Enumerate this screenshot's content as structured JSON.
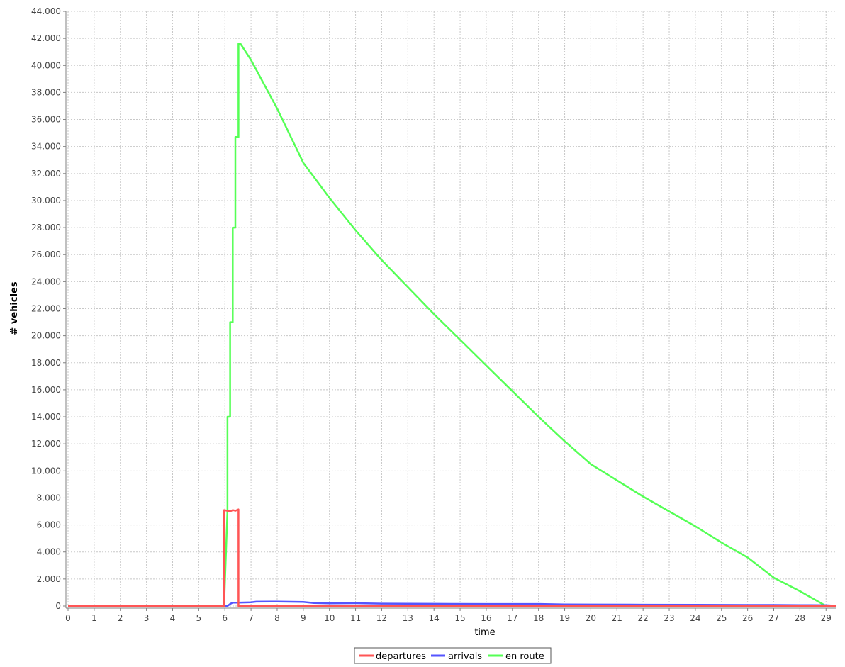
{
  "chart_data": {
    "type": "line",
    "title": "",
    "xlabel": "time",
    "ylabel": "# vehicles",
    "xlim": [
      0,
      29.4
    ],
    "ylim": [
      0,
      44000
    ],
    "x_ticks": [
      0,
      1,
      2,
      3,
      4,
      5,
      6,
      7,
      8,
      9,
      10,
      11,
      12,
      13,
      14,
      15,
      16,
      17,
      18,
      19,
      20,
      21,
      22,
      23,
      24,
      25,
      26,
      27,
      28,
      29
    ],
    "x_tick_labels": [
      "0",
      "1",
      "2",
      "3",
      "4",
      "5",
      "6",
      "7",
      "8",
      "9",
      "10",
      "11",
      "12",
      "13",
      "14",
      "15",
      "16",
      "17",
      "18",
      "19",
      "20",
      "21",
      "22",
      "23",
      "24",
      "25",
      "26",
      "27",
      "28",
      "29"
    ],
    "y_ticks": [
      0,
      2000,
      4000,
      6000,
      8000,
      10000,
      12000,
      14000,
      16000,
      18000,
      20000,
      22000,
      24000,
      26000,
      28000,
      30000,
      32000,
      34000,
      36000,
      38000,
      40000,
      42000,
      44000
    ],
    "y_tick_labels": [
      "0",
      "2.000",
      "4.000",
      "6.000",
      "8.000",
      "10.000",
      "12.000",
      "14.000",
      "16.000",
      "18.000",
      "20.000",
      "22.000",
      "24.000",
      "26.000",
      "28.000",
      "30.000",
      "32.000",
      "34.000",
      "36.000",
      "38.000",
      "40.000",
      "42.000",
      "44.000"
    ],
    "grid": true,
    "legend_position": "bottom",
    "series": [
      {
        "name": "departures",
        "color": "#ff5555",
        "points": [
          [
            0,
            0
          ],
          [
            5.97,
            0
          ],
          [
            5.97,
            7100
          ],
          [
            6.1,
            7050
          ],
          [
            6.2,
            7000
          ],
          [
            6.3,
            7100
          ],
          [
            6.4,
            7050
          ],
          [
            6.52,
            7150
          ],
          [
            6.52,
            0
          ],
          [
            29.4,
            0
          ]
        ]
      },
      {
        "name": "arrivals",
        "color": "#5555ff",
        "points": [
          [
            0,
            0
          ],
          [
            6.1,
            0
          ],
          [
            6.2,
            150
          ],
          [
            6.3,
            250
          ],
          [
            6.5,
            250
          ],
          [
            7,
            280
          ],
          [
            7.2,
            320
          ],
          [
            8,
            330
          ],
          [
            9,
            300
          ],
          [
            9.4,
            220
          ],
          [
            10,
            200
          ],
          [
            11,
            210
          ],
          [
            12,
            180
          ],
          [
            14,
            160
          ],
          [
            16,
            150
          ],
          [
            18,
            150
          ],
          [
            19,
            120
          ],
          [
            20,
            110
          ],
          [
            22,
            100
          ],
          [
            24,
            90
          ],
          [
            26,
            80
          ],
          [
            27,
            80
          ],
          [
            28,
            70
          ],
          [
            29,
            60
          ],
          [
            29.4,
            20
          ]
        ]
      },
      {
        "name": "en route",
        "color": "#55ff55",
        "points": [
          [
            5.97,
            0
          ],
          [
            6.1,
            7100
          ],
          [
            6.1,
            14000
          ],
          [
            6.2,
            14000
          ],
          [
            6.2,
            21000
          ],
          [
            6.3,
            21000
          ],
          [
            6.3,
            28000
          ],
          [
            6.4,
            28000
          ],
          [
            6.4,
            34700
          ],
          [
            6.52,
            34700
          ],
          [
            6.52,
            41600
          ],
          [
            6.6,
            41600
          ],
          [
            7,
            40400
          ],
          [
            8,
            36800
          ],
          [
            9,
            32800
          ],
          [
            10,
            30200
          ],
          [
            11,
            27800
          ],
          [
            12,
            25600
          ],
          [
            13,
            23600
          ],
          [
            14,
            21600
          ],
          [
            15,
            19700
          ],
          [
            16,
            17800
          ],
          [
            17,
            15900
          ],
          [
            18,
            14000
          ],
          [
            19,
            12200
          ],
          [
            20,
            10500
          ],
          [
            21,
            9300
          ],
          [
            22,
            8100
          ],
          [
            23,
            7000
          ],
          [
            24,
            5900
          ],
          [
            25,
            4700
          ],
          [
            26,
            3600
          ],
          [
            27,
            2100
          ],
          [
            28,
            1100
          ],
          [
            29,
            0
          ],
          [
            29.4,
            0
          ]
        ]
      }
    ]
  }
}
